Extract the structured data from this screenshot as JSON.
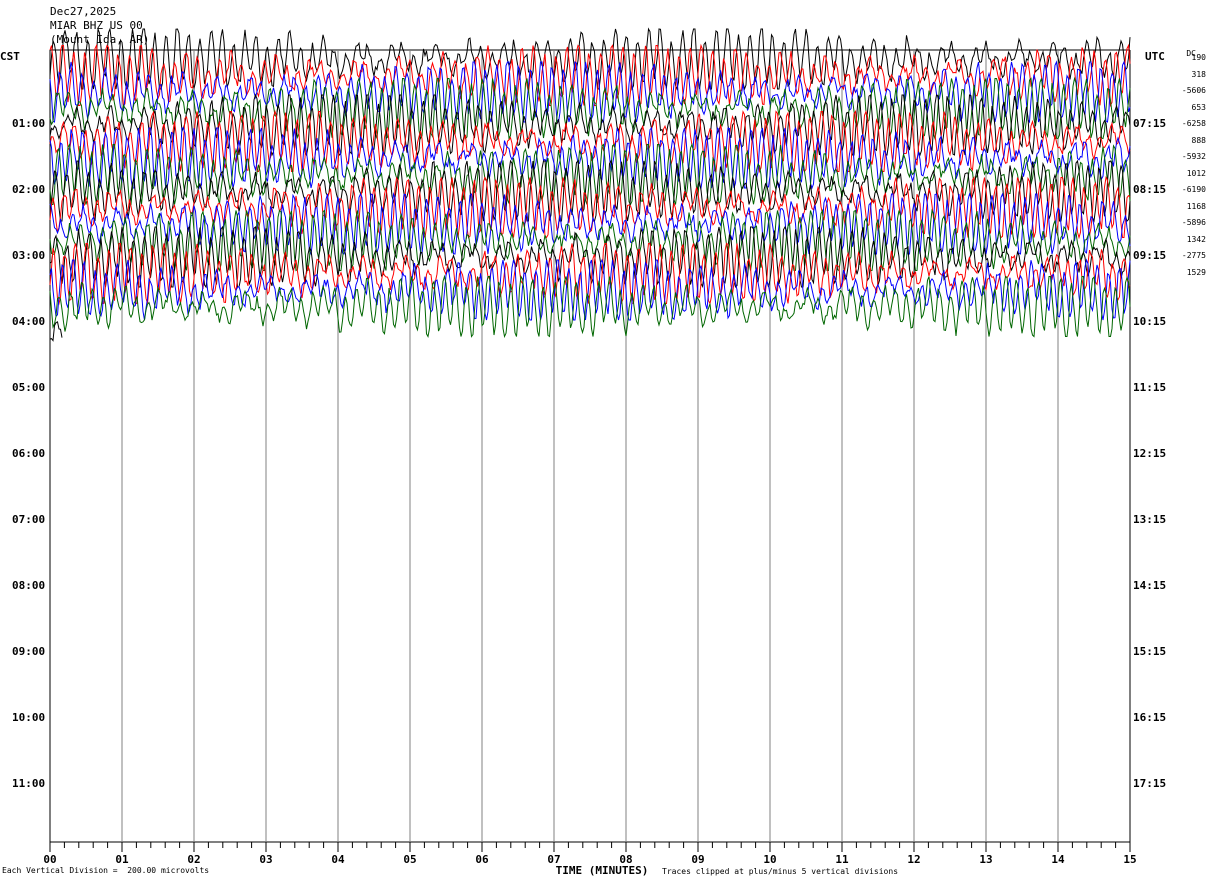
{
  "header": {
    "date": "Dec27,2025",
    "station": "MIAR BHZ US 00",
    "location": "(Mount Ida, AR)"
  },
  "left_timezone": "CST",
  "right_timezone": "UTC",
  "dc_label": "DC",
  "footer": {
    "scale_note": "Each Vertical Division =  200.00 microvolts",
    "x_title": "TIME (MINUTES)",
    "clip_note": "Traces clipped at plus/minus 5 vertical divisions"
  },
  "colors": {
    "black": "#000000",
    "red": "#ff0000",
    "blue": "#0000ff",
    "green": "#006600",
    "grid": "#808080"
  },
  "chart_data": {
    "type": "line",
    "title": "",
    "xlabel": "TIME (MINUTES)",
    "x_ticks": [
      "00",
      "01",
      "02",
      "03",
      "04",
      "05",
      "06",
      "07",
      "08",
      "09",
      "10",
      "11",
      "12",
      "13",
      "14",
      "15"
    ],
    "xlim": [
      0,
      15
    ],
    "left_time_labels": [
      "01:00",
      "02:00",
      "03:00",
      "04:00",
      "05:00",
      "06:00",
      "07:00",
      "08:00",
      "09:00",
      "10:00",
      "11:00"
    ],
    "right_time_labels": [
      "07:15",
      "08:15",
      "09:15",
      "10:15",
      "11:15",
      "12:15",
      "13:15",
      "14:15",
      "15:15",
      "16:15",
      "17:15"
    ],
    "row_minutes": 15,
    "trace_colors": [
      "black",
      "red",
      "blue",
      "green"
    ],
    "dc_offsets": [
      "190",
      "318",
      "-5606",
      "653",
      "-6258",
      "888",
      "-5932",
      "1012",
      "-6190",
      "1168",
      "-5896",
      "1342",
      "-2775",
      "1529"
    ],
    "traces_recorded": 17,
    "clip_divisions": 5
  }
}
